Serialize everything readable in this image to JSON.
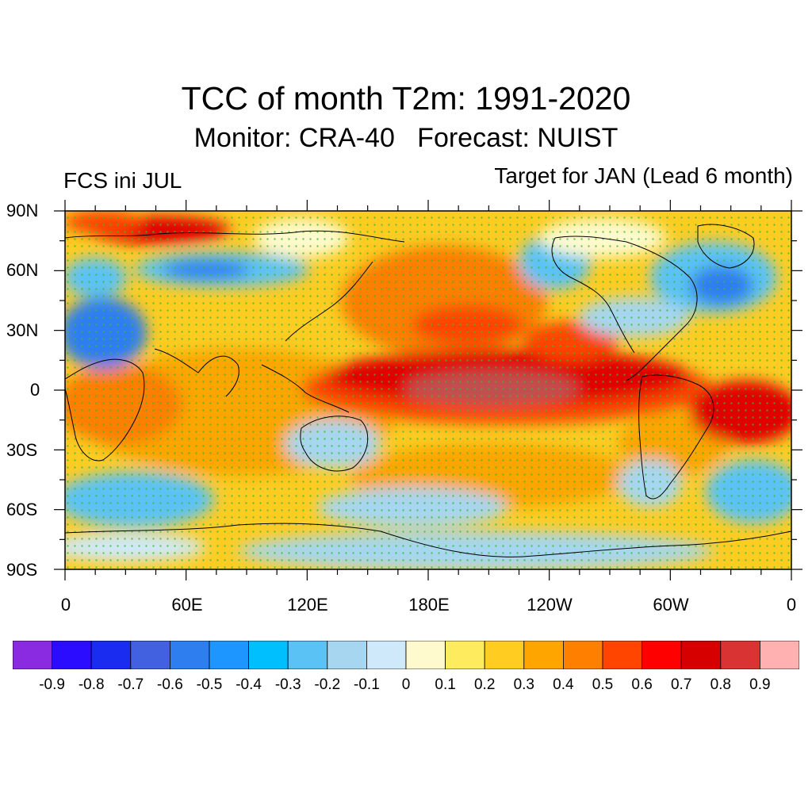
{
  "title": "TCC of month T2m: 1991-2020",
  "subtitle": "Monitor: CRA-40   Forecast: NUIST",
  "left_label": "FCS ini JUL",
  "right_label": "Target for JAN (Lead 6 month)",
  "map": {
    "projection": "cylindrical equidistant",
    "lon_range": [
      0,
      360
    ],
    "lat_range": [
      -90,
      90
    ],
    "y_tick_labels": [
      "90N",
      "60N",
      "30N",
      "0",
      "30S",
      "60S",
      "90S"
    ],
    "x_tick_labels": [
      "0",
      "60E",
      "120E",
      "180E",
      "120W",
      "60W",
      "0"
    ],
    "stipple_color": "#33bb33",
    "coastline_color": "#000000"
  },
  "colorbar": {
    "labels": [
      "-0.9",
      "-0.8",
      "-0.7",
      "-0.6",
      "-0.5",
      "-0.4",
      "-0.3",
      "-0.2",
      "-0.1",
      "0",
      "0.1",
      "0.2",
      "0.3",
      "0.4",
      "0.5",
      "0.6",
      "0.7",
      "0.8",
      "0.9"
    ],
    "colors": [
      "#8a2be2",
      "#2b0cff",
      "#1a2cf0",
      "#4161e0",
      "#2f7ef0",
      "#1e96ff",
      "#00bfff",
      "#5bc2f5",
      "#a6d6f0",
      "#cfe9fb",
      "#fffacd",
      "#ffec5e",
      "#ffcc22",
      "#ffa500",
      "#ff7f00",
      "#ff4500",
      "#ff0000",
      "#d70000",
      "#d93333",
      "#ffb0b0"
    ]
  }
}
